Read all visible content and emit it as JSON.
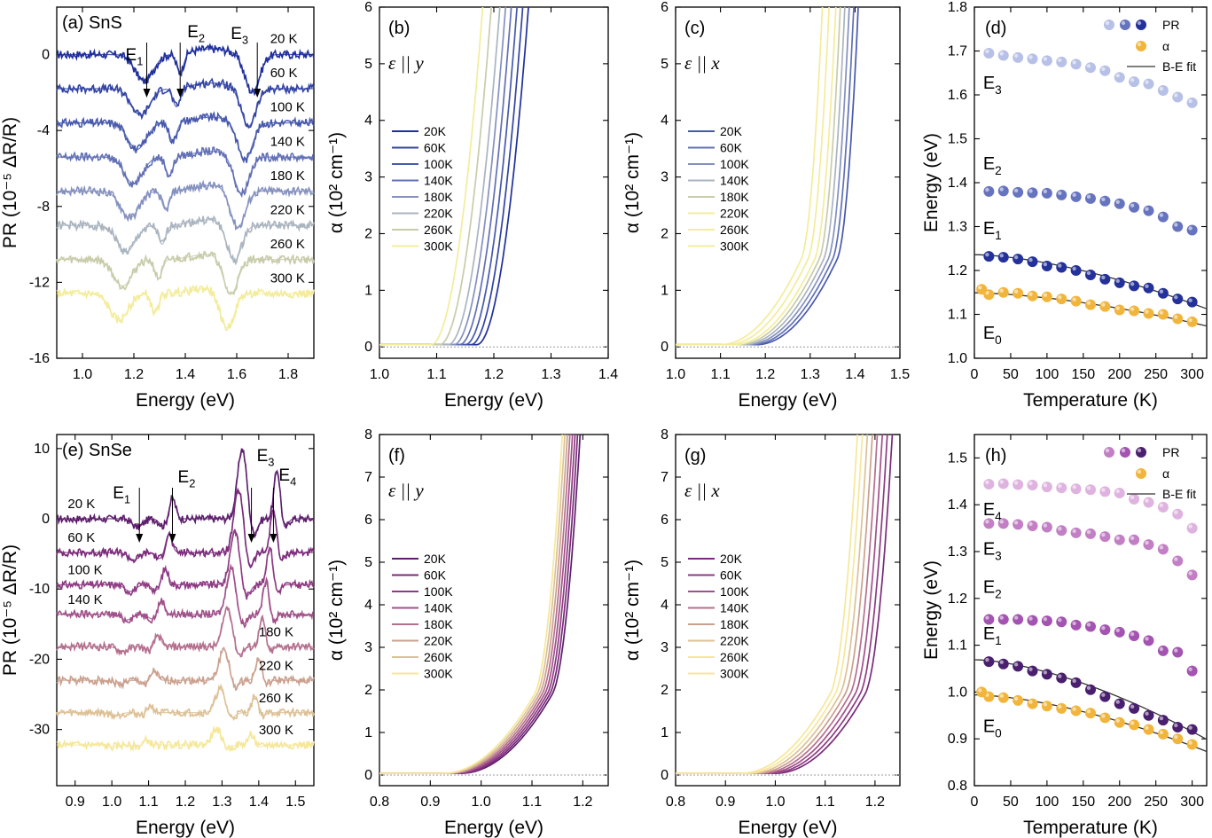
{
  "colors": {
    "sns_ramp": [
      "#1f2f9c",
      "#3244a3",
      "#4759ad",
      "#6270b5",
      "#8591bf",
      "#aab4bf",
      "#c8ccaa",
      "#f3ec9a"
    ],
    "snse_ramp": [
      "#5e1e6e",
      "#7a2a7a",
      "#8e3b83",
      "#a0508a",
      "#b56f8e",
      "#caa08e",
      "#ddc196",
      "#f5e79a"
    ],
    "sns_pr": "#24319a",
    "sns_e2": "#6673bf",
    "sns_e3": "#b7c0e6",
    "snse_e1": "#4a1f6e",
    "snse_e2": "#a353b0",
    "snse_e3": "#c27fc4",
    "snse_e4": "#dfb3df",
    "alpha": "#f2b53c",
    "fit": "#333333"
  },
  "chart_data": [
    {
      "id": "a",
      "type": "line",
      "title": "(a) SnS",
      "xlabel": "Energy (eV)",
      "ylabel": "PR (10⁻⁵ ΔR/R)",
      "xlim": [
        0.9,
        1.9
      ],
      "ylim": [
        -16,
        2.5
      ],
      "xticks": [
        "1.0",
        "1.2",
        "1.4",
        "1.6",
        "1.8"
      ],
      "yticks": [
        "0",
        "-4",
        "-8",
        "-12",
        "-16"
      ],
      "series_labels": [
        "20 K",
        "60 K",
        "100 K",
        "140 K",
        "180 K",
        "220 K",
        "260 K",
        "300 K"
      ],
      "offsets": [
        0,
        -1.8,
        -3.6,
        -5.4,
        -7.2,
        -9.0,
        -10.8,
        -12.6
      ],
      "transitions": [
        {
          "label": "E",
          "sub": "1",
          "x": 1.25
        },
        {
          "label": "E",
          "sub": "2",
          "x": 1.38
        },
        {
          "label": "E",
          "sub": "3",
          "x": 1.68
        }
      ]
    },
    {
      "id": "b",
      "type": "line",
      "title": "(b)",
      "annotation": "ε || y",
      "xlabel": "Energy (eV)",
      "ylabel": "α (10² cm⁻¹)",
      "xlim": [
        1.0,
        1.4
      ],
      "ylim": [
        -0.2,
        6
      ],
      "xticks": [
        "1.0",
        "1.1",
        "1.2",
        "1.3",
        "1.4"
      ],
      "yticks": [
        "0",
        "1",
        "2",
        "3",
        "4",
        "5",
        "6"
      ],
      "legend": [
        "20K",
        "60K",
        "100K",
        "140K",
        "180K",
        "220K",
        "260K",
        "300K"
      ],
      "onsets": [
        1.17,
        1.16,
        1.15,
        1.14,
        1.13,
        1.12,
        1.105,
        1.09
      ]
    },
    {
      "id": "c",
      "type": "line",
      "title": "(c)",
      "annotation": "ε || x",
      "xlabel": "Energy (eV)",
      "ylabel": "α (10² cm⁻¹)",
      "xlim": [
        1.0,
        1.5
      ],
      "ylim": [
        -0.2,
        6
      ],
      "xticks": [
        "1.0",
        "1.1",
        "1.2",
        "1.3",
        "1.4",
        "1.5"
      ],
      "yticks": [
        "0",
        "1",
        "2",
        "3",
        "4",
        "5",
        "6"
      ],
      "legend": [
        "20K",
        "60K",
        "100K",
        "140K",
        "180K",
        "220K",
        "260K",
        "300K"
      ],
      "onsets": [
        1.18,
        1.17,
        1.16,
        1.15,
        1.14,
        1.13,
        1.115,
        1.1
      ]
    },
    {
      "id": "d",
      "type": "scatter",
      "title": "(d)",
      "xlabel": "Temperature (K)",
      "ylabel": "Energy (eV)",
      "xlim": [
        0,
        320
      ],
      "ylim": [
        1.0,
        1.8
      ],
      "xticks": [
        "0",
        "50",
        "100",
        "150",
        "200",
        "250",
        "300"
      ],
      "yticks": [
        "1.0",
        "1.1",
        "1.2",
        "1.3",
        "1.4",
        "1.5",
        "1.6",
        "1.7",
        "1.8"
      ],
      "legend": [
        "PR",
        "α",
        "B-E fit"
      ],
      "x": [
        20,
        40,
        60,
        80,
        100,
        120,
        140,
        160,
        180,
        200,
        220,
        240,
        260,
        280,
        300
      ],
      "series": [
        {
          "name": "E₃",
          "values": [
            1.695,
            1.69,
            1.685,
            1.682,
            1.678,
            1.675,
            1.67,
            1.662,
            1.655,
            1.64,
            1.63,
            1.625,
            1.61,
            1.595,
            1.582
          ]
        },
        {
          "name": "E₂",
          "values": [
            1.38,
            1.381,
            1.378,
            1.377,
            1.376,
            1.372,
            1.368,
            1.364,
            1.358,
            1.352,
            1.344,
            1.336,
            1.322,
            1.3,
            1.292
          ]
        },
        {
          "name": "E₁",
          "values": [
            1.232,
            1.23,
            1.226,
            1.22,
            1.21,
            1.207,
            1.2,
            1.19,
            1.18,
            1.172,
            1.165,
            1.16,
            1.148,
            1.135,
            1.128
          ]
        },
        {
          "name": "E₀",
          "values": [
            1.145,
            1.15,
            1.148,
            1.142,
            1.14,
            1.135,
            1.13,
            1.122,
            1.118,
            1.11,
            1.108,
            1.102,
            1.1,
            1.09,
            1.083
          ]
        }
      ],
      "extra_alpha_point": {
        "x": 10,
        "y": 1.157
      }
    },
    {
      "id": "e",
      "type": "line",
      "title": "(e) SnSe",
      "xlabel": "Energy (eV)",
      "ylabel": "PR (10⁻⁵ ΔR/R)",
      "xlim": [
        0.85,
        1.55
      ],
      "ylim": [
        -38,
        12
      ],
      "xticks": [
        "0.9",
        "1.0",
        "1.1",
        "1.2",
        "1.3",
        "1.4",
        "1.5"
      ],
      "yticks": [
        "10",
        "0",
        "-10",
        "-20",
        "-30"
      ],
      "series_labels": [
        "20 K",
        "60 K",
        "100 K",
        "140 K",
        "180 K",
        "220 K",
        "260 K",
        "300 K"
      ],
      "offsets": [
        0,
        -4.8,
        -9.4,
        -13.6,
        -18.2,
        -23.0,
        -27.6,
        -32.2
      ],
      "transitions": [
        {
          "label": "E",
          "sub": "1",
          "x": 1.075
        },
        {
          "label": "E",
          "sub": "2",
          "x": 1.165
        },
        {
          "label": "E",
          "sub": "3",
          "x": 1.38
        },
        {
          "label": "E",
          "sub": "4",
          "x": 1.44
        }
      ]
    },
    {
      "id": "f",
      "type": "line",
      "title": "(f)",
      "annotation": "ε || y",
      "xlabel": "Energy (eV)",
      "ylabel": "α (10² cm⁻¹)",
      "xlim": [
        0.8,
        1.25
      ],
      "ylim": [
        -0.25,
        8
      ],
      "xticks": [
        "0.8",
        "0.9",
        "1.0",
        "1.1",
        "1.2"
      ],
      "yticks": [
        "0",
        "1",
        "2",
        "3",
        "4",
        "5",
        "6",
        "7",
        "8"
      ],
      "legend": [
        "20K",
        "60K",
        "100K",
        "140K",
        "180K",
        "220K",
        "260K",
        "300K"
      ],
      "onsets": [
        0.96,
        0.955,
        0.95,
        0.945,
        0.94,
        0.935,
        0.93,
        0.925
      ]
    },
    {
      "id": "g",
      "type": "line",
      "title": "(g)",
      "annotation": "ε || x",
      "xlabel": "Energy (eV)",
      "ylabel": "α (10² cm⁻¹)",
      "xlim": [
        0.8,
        1.25
      ],
      "ylim": [
        -0.25,
        8
      ],
      "xticks": [
        "0.8",
        "0.9",
        "1.0",
        "1.1",
        "1.2"
      ],
      "yticks": [
        "0",
        "1",
        "2",
        "3",
        "4",
        "5",
        "6",
        "7",
        "8"
      ],
      "legend": [
        "20K",
        "60K",
        "100K",
        "140K",
        "180K",
        "220K",
        "260K",
        "300K"
      ],
      "onsets": [
        1.0,
        0.99,
        0.98,
        0.97,
        0.96,
        0.95,
        0.94,
        0.93
      ]
    },
    {
      "id": "h",
      "type": "scatter",
      "title": "(h)",
      "xlabel": "Temperature (K)",
      "ylabel": "Energy (eV)",
      "xlim": [
        0,
        320
      ],
      "ylim": [
        0.8,
        1.55
      ],
      "xticks": [
        "0",
        "50",
        "100",
        "150",
        "200",
        "250",
        "300"
      ],
      "yticks": [
        "0.8",
        "0.9",
        "1.0",
        "1.1",
        "1.2",
        "1.3",
        "1.4",
        "1.5"
      ],
      "legend": [
        "PR",
        "α",
        "B-E fit"
      ],
      "x": [
        20,
        40,
        60,
        80,
        100,
        120,
        140,
        160,
        180,
        200,
        220,
        240,
        260,
        280,
        300
      ],
      "series": [
        {
          "name": "E₄",
          "values": [
            1.444,
            1.445,
            1.443,
            1.442,
            1.438,
            1.436,
            1.434,
            1.432,
            1.428,
            1.425,
            1.412,
            1.405,
            1.395,
            1.38,
            1.35
          ]
        },
        {
          "name": "E₃",
          "values": [
            1.36,
            1.36,
            1.358,
            1.355,
            1.352,
            1.345,
            1.34,
            1.338,
            1.332,
            1.325,
            1.325,
            1.315,
            1.305,
            1.28,
            1.25
          ]
        },
        {
          "name": "E₂",
          "values": [
            1.155,
            1.155,
            1.155,
            1.153,
            1.152,
            1.15,
            1.143,
            1.14,
            1.133,
            1.128,
            1.12,
            1.11,
            1.088,
            1.085,
            1.045
          ]
        },
        {
          "name": "E₁",
          "values": [
            1.065,
            1.06,
            1.055,
            1.045,
            1.038,
            1.03,
            1.02,
            1.005,
            0.99,
            0.975,
            0.965,
            0.95,
            0.94,
            0.925,
            0.92
          ]
        },
        {
          "name": "E₀",
          "values": [
            0.99,
            0.988,
            0.982,
            0.975,
            0.97,
            0.965,
            0.96,
            0.955,
            0.945,
            0.935,
            0.93,
            0.92,
            0.91,
            0.9,
            0.888
          ]
        }
      ],
      "extra_alpha_point": {
        "x": 10,
        "y": 1.0
      }
    }
  ]
}
